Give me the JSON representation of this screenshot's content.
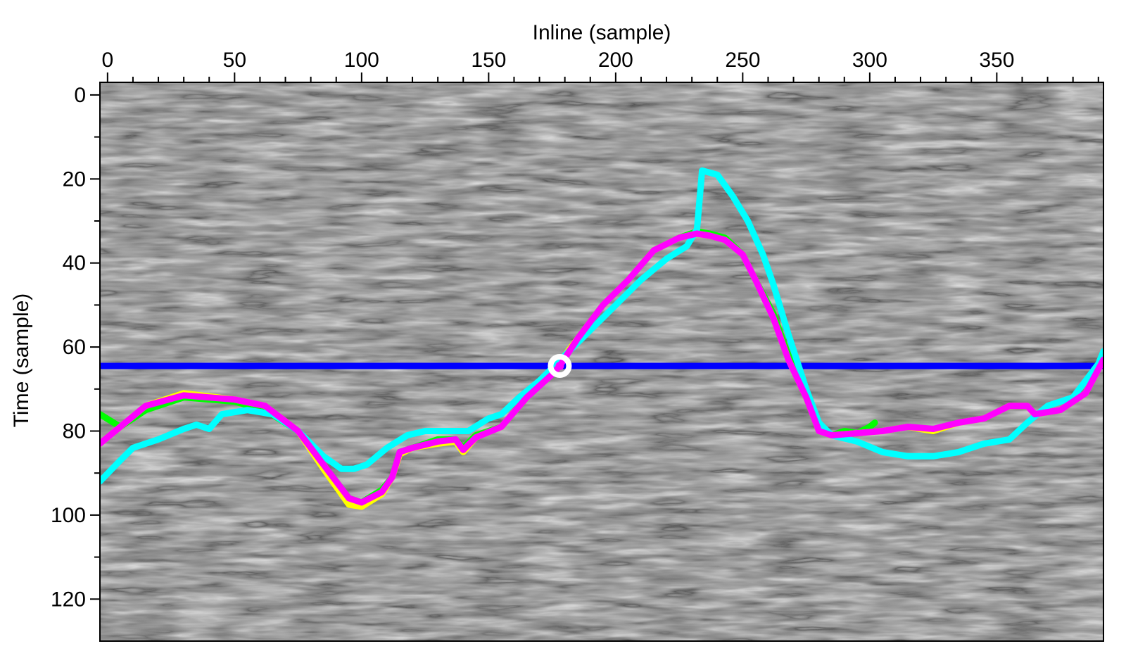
{
  "chart_data": {
    "type": "line",
    "title": "",
    "xlabel": "Inline (sample)",
    "ylabel": "Time (sample)",
    "xlim": [
      -3,
      392
    ],
    "ylim": [
      130,
      -3
    ],
    "y_inverted": true,
    "x_axis_position": "top",
    "grid": false,
    "legend": "none",
    "background": "seismic section (grayscale image)",
    "x_ticks": [
      0,
      50,
      100,
      150,
      200,
      250,
      300,
      350
    ],
    "y_ticks": [
      0,
      20,
      40,
      60,
      80,
      100,
      120
    ],
    "horizontal_line": {
      "y": 64.5,
      "color": "#0000ff"
    },
    "marker": {
      "x": 178,
      "y": 64.5,
      "color": "#ffffff"
    },
    "series": [
      {
        "color": "#00ff00",
        "x": [
          -3,
          5,
          15,
          30,
          50,
          62,
          75,
          85,
          95,
          100,
          108,
          112,
          115,
          120,
          130,
          137,
          140,
          145,
          155,
          165,
          175,
          185,
          195,
          205,
          215,
          225,
          232,
          237,
          243,
          250,
          255,
          262,
          268,
          275,
          280,
          285,
          290,
          295,
          300,
          302
        ],
        "y": [
          76,
          79,
          75,
          72,
          73,
          75,
          80,
          88,
          96,
          97,
          94,
          91,
          85,
          84,
          82,
          82,
          84,
          81,
          79,
          72,
          66,
          58,
          50,
          44,
          37,
          34,
          32.5,
          33,
          34,
          38,
          44,
          52,
          62,
          72,
          80,
          81,
          80,
          80.5,
          79,
          78
        ]
      },
      {
        "color": "#ffff00",
        "x": [
          -3,
          5,
          15,
          30,
          50,
          62,
          75,
          85,
          95,
          100,
          108,
          112,
          115,
          120,
          130,
          137,
          140,
          145,
          155,
          165,
          175,
          185,
          195,
          205,
          215,
          225,
          232,
          237,
          243,
          250,
          255,
          262,
          268,
          275,
          280,
          285,
          295,
          305,
          315,
          325,
          335,
          345,
          355,
          362,
          365,
          375,
          385,
          392
        ],
        "y": [
          83,
          79,
          74,
          71,
          72.5,
          74,
          80,
          89,
          97.5,
          98,
          95,
          91,
          85.5,
          84,
          83,
          82.5,
          85,
          81.5,
          79,
          72,
          66,
          58,
          50,
          44,
          37,
          34,
          33,
          33.5,
          34.5,
          38,
          44,
          53,
          63,
          72,
          80,
          81,
          80.5,
          80,
          79,
          80,
          78,
          77,
          74,
          74,
          76,
          75,
          71,
          63
        ]
      },
      {
        "color": "#00ffff",
        "x": [
          -3,
          5,
          10,
          20,
          30,
          35,
          40,
          45,
          55,
          65,
          75,
          85,
          92,
          97,
          102,
          110,
          118,
          125,
          135,
          142,
          150,
          155,
          162,
          170,
          180,
          190,
          200,
          210,
          220,
          228,
          232,
          234,
          240,
          246,
          252,
          258,
          262,
          268,
          275,
          280,
          285,
          295,
          305,
          315,
          325,
          335,
          345,
          355,
          362,
          370,
          380,
          390,
          392
        ],
        "y": [
          92,
          87,
          84,
          82,
          79.5,
          78.5,
          79.5,
          76,
          75,
          76,
          80,
          86,
          89,
          89,
          88,
          84,
          81,
          80,
          80,
          80,
          77,
          76,
          72,
          68,
          62,
          56,
          50,
          44,
          39,
          36,
          32,
          18,
          19,
          24,
          30,
          38,
          45,
          57,
          70,
          78,
          81,
          82.5,
          85,
          86,
          86,
          85,
          83,
          82,
          78,
          74,
          72,
          64,
          61
        ]
      },
      {
        "color": "#ff00ff",
        "x": [
          -3,
          5,
          15,
          30,
          50,
          62,
          75,
          85,
          95,
          100,
          108,
          112,
          115,
          120,
          130,
          137,
          140,
          145,
          155,
          165,
          175,
          178,
          185,
          195,
          205,
          215,
          225,
          232,
          237,
          243,
          250,
          255,
          262,
          268,
          275,
          280,
          285,
          295,
          305,
          315,
          325,
          335,
          345,
          355,
          362,
          365,
          375,
          385,
          392
        ],
        "y": [
          83,
          79,
          74,
          71.5,
          72.5,
          74,
          80,
          88,
          96,
          97,
          94.5,
          91,
          85,
          84,
          82.5,
          82,
          84.5,
          81.5,
          79,
          72,
          66.5,
          64.5,
          58,
          50,
          44,
          37,
          34,
          33,
          33.5,
          34.5,
          38,
          44,
          53,
          63,
          72,
          80,
          81,
          80.5,
          80,
          79,
          79.5,
          78,
          77,
          74,
          74,
          76,
          75,
          71,
          63
        ]
      }
    ]
  }
}
